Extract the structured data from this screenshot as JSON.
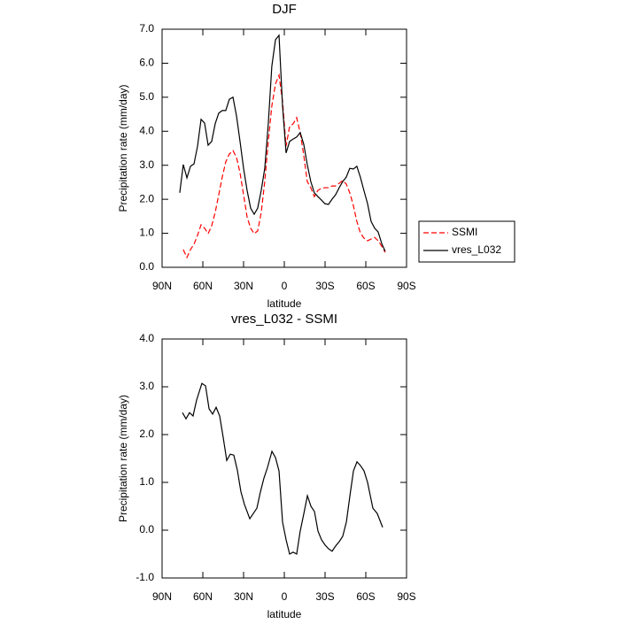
{
  "chart_data": [
    {
      "type": "line",
      "title": "DJF",
      "xlabel": "latitude",
      "ylabel": "Precipitation rate (mm/day)",
      "xlim": [
        90,
        -90
      ],
      "xticks": [
        {
          "value": 90,
          "label": "90N"
        },
        {
          "value": 60,
          "label": "60N"
        },
        {
          "value": 30,
          "label": "30N"
        },
        0,
        {
          "value": -30,
          "label": "30S"
        },
        {
          "value": -60,
          "label": "60S"
        },
        {
          "value": -90,
          "label": "90S"
        }
      ],
      "ylim": [
        0,
        7
      ],
      "yticks": [
        {
          "value": 0,
          "label": "0.0"
        },
        {
          "value": 1,
          "label": "1.0"
        },
        {
          "value": 2,
          "label": "2.0"
        },
        {
          "value": 3,
          "label": "3.0"
        },
        {
          "value": 4,
          "label": "4.0"
        },
        {
          "value": 5,
          "label": "5.0"
        },
        {
          "value": 6,
          "label": "6.0"
        },
        {
          "value": 7,
          "label": "7.0"
        }
      ],
      "legend": "right",
      "x": [
        77.0,
        74.4,
        71.7,
        69.1,
        66.5,
        63.9,
        61.3,
        58.7,
        56.1,
        53.5,
        50.9,
        48.3,
        45.7,
        43.1,
        40.5,
        37.8,
        35.2,
        32.6,
        30.0,
        27.4,
        24.8,
        22.2,
        19.6,
        17.0,
        14.4,
        11.8,
        9.2,
        6.5,
        3.9,
        1.3,
        -1.3,
        -3.9,
        -6.5,
        -9.1,
        -11.7,
        -14.3,
        -16.9,
        -19.5,
        -22.1,
        -24.7,
        -27.3,
        -29.9,
        -32.5,
        -35.1,
        -37.7,
        -40.4,
        -43.0,
        -45.6,
        -48.2,
        -50.8,
        -53.4,
        -56.0,
        -58.6,
        -61.3,
        -63.9,
        -66.5,
        -69.1,
        -71.7,
        -74.3
      ],
      "series": [
        {
          "name": "SSMI",
          "color": "#ff0000",
          "dash": true,
          "values": [
            null,
            0.52,
            0.29,
            0.52,
            0.68,
            0.94,
            1.25,
            1.15,
            0.99,
            1.22,
            1.61,
            2.13,
            2.65,
            3.1,
            3.33,
            3.43,
            3.23,
            2.78,
            2.13,
            1.48,
            1.15,
            0.99,
            1.07,
            1.61,
            2.52,
            3.7,
            4.74,
            5.39,
            5.65,
            4.87,
            3.56,
            4.14,
            4.22,
            4.4,
            3.96,
            3.3,
            2.52,
            2.34,
            2.08,
            2.26,
            2.32,
            2.34,
            2.34,
            2.39,
            2.39,
            2.47,
            2.55,
            2.45,
            2.19,
            1.82,
            1.35,
            1.01,
            0.86,
            0.78,
            0.83,
            0.88,
            0.78,
            0.62,
            0.44
          ]
        },
        {
          "name": "vres_L032",
          "color": "#000000",
          "dash": false,
          "values": [
            2.19,
            3.02,
            2.63,
            2.97,
            3.04,
            3.56,
            4.35,
            4.24,
            3.59,
            3.7,
            4.22,
            4.53,
            4.61,
            4.61,
            4.94,
            5.0,
            4.45,
            3.7,
            2.91,
            2.26,
            1.74,
            1.56,
            1.74,
            2.26,
            2.91,
            4.22,
            5.91,
            6.69,
            6.82,
            4.74,
            3.36,
            3.7,
            3.77,
            3.83,
            3.96,
            3.62,
            3.02,
            2.52,
            2.19,
            2.08,
            1.98,
            1.87,
            1.85,
            2.0,
            2.13,
            2.34,
            2.52,
            2.65,
            2.91,
            2.89,
            2.97,
            2.65,
            2.26,
            1.87,
            1.35,
            1.15,
            1.04,
            0.7,
            0.47
          ]
        }
      ]
    },
    {
      "type": "line",
      "title": "vres_L032 - SSMI",
      "xlabel": "latitude",
      "ylabel": "Precipitation rate (mm/day)",
      "xlim": [
        90,
        -90
      ],
      "xticks": [
        {
          "value": 90,
          "label": "90N"
        },
        {
          "value": 60,
          "label": "60N"
        },
        {
          "value": 30,
          "label": "30N"
        },
        0,
        {
          "value": -30,
          "label": "30S"
        },
        {
          "value": -60,
          "label": "60S"
        },
        {
          "value": -90,
          "label": "90S"
        }
      ],
      "ylim": [
        -1,
        4
      ],
      "yticks": [
        {
          "value": -1,
          "label": "-1.0"
        },
        {
          "value": 0,
          "label": "0.0"
        },
        {
          "value": 1,
          "label": "1.0"
        },
        {
          "value": 2,
          "label": "2.0"
        },
        {
          "value": 3,
          "label": "3.0"
        },
        {
          "value": 4,
          "label": "4.0"
        }
      ],
      "x": [
        75.0,
        72.4,
        69.8,
        67.2,
        64.6,
        60.7,
        58.0,
        55.4,
        52.8,
        50.2,
        47.6,
        45.0,
        42.4,
        39.8,
        37.2,
        34.6,
        32.0,
        29.4,
        25.4,
        22.8,
        20.2,
        17.6,
        15.0,
        12.4,
        9.1,
        6.5,
        3.9,
        1.3,
        -1.3,
        -3.9,
        -6.5,
        -9.1,
        -11.7,
        -14.4,
        -17.0,
        -19.6,
        -22.2,
        -24.8,
        -27.4,
        -30.0,
        -32.6,
        -35.2,
        -37.8,
        -40.4,
        -43.0,
        -45.7,
        -48.3,
        -50.9,
        -53.5,
        -56.1,
        -58.7,
        -61.3,
        -65.2,
        -68.4,
        -72.4
      ],
      "series": [
        {
          "color": "#000000",
          "dash": false,
          "values": [
            2.46,
            2.33,
            2.46,
            2.39,
            2.72,
            3.07,
            3.02,
            2.54,
            2.43,
            2.57,
            2.39,
            1.94,
            1.46,
            1.59,
            1.57,
            1.26,
            0.81,
            0.54,
            0.24,
            0.35,
            0.46,
            0.8,
            1.09,
            1.31,
            1.65,
            1.52,
            1.24,
            0.17,
            -0.2,
            -0.5,
            -0.46,
            -0.5,
            -0.02,
            0.35,
            0.72,
            0.5,
            0.39,
            -0.02,
            -0.2,
            -0.31,
            -0.39,
            -0.44,
            -0.33,
            -0.24,
            -0.13,
            0.17,
            0.72,
            1.24,
            1.43,
            1.35,
            1.24,
            1.0,
            0.46,
            0.35,
            0.06
          ]
        }
      ]
    }
  ]
}
